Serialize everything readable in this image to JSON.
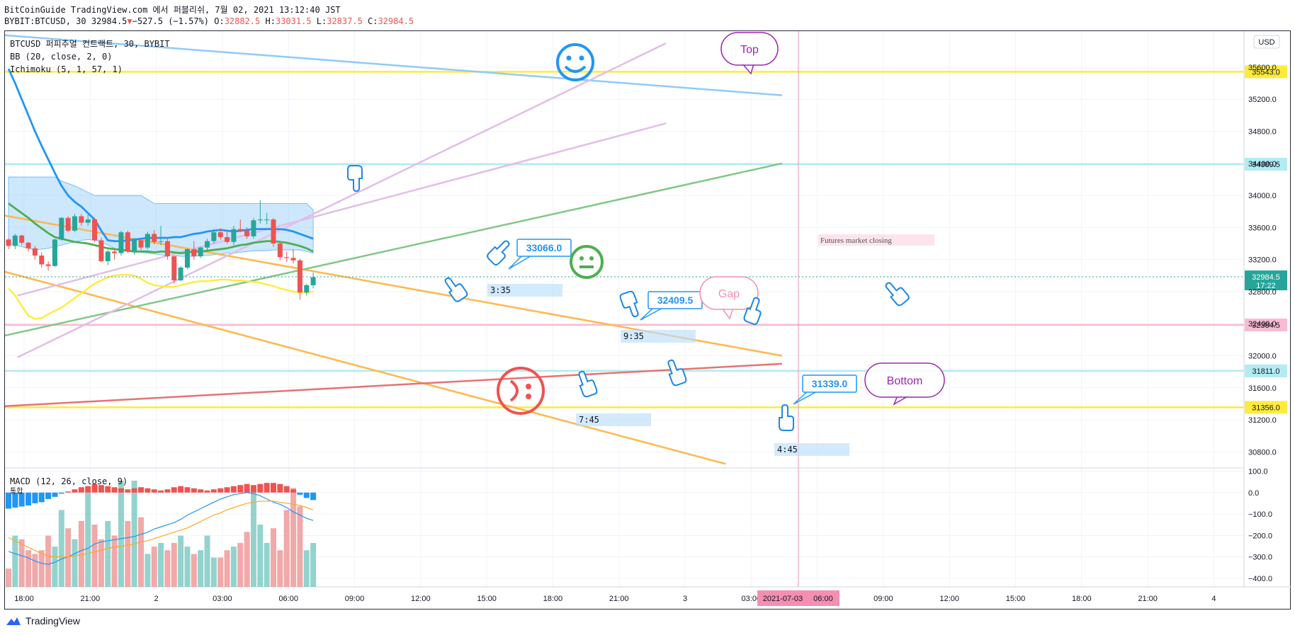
{
  "header": {
    "line1": "BitCoinGuide TradingView.com 에서 퍼블리쉬, 7월 02, 2021 13:12:40 JST",
    "symbol": "BYBIT:BTCUSD, 30 32984.5",
    "change": "−527.5 (−1.57%)",
    "o": "32882.5",
    "h": "33031.5",
    "l": "32837.5",
    "c": "32984.5"
  },
  "legend": {
    "title": "BTCUSD 퍼피추얼 컨트랙트, 30, BYBIT",
    "bb": "BB (20, close, 2, 0)",
    "ichimoku": "Ichimoku (5, 1, 57, 1)",
    "macd": "MACD (12, 26, close, 9)",
    "macd_sub": "통합"
  },
  "currency": "USD",
  "footer": {
    "brand": "TradingView"
  },
  "colors": {
    "up": "#26a69a",
    "down": "#ef5350",
    "blue": "#2196f3",
    "green": "#4caf50",
    "orange": "#ffa726",
    "yellow": "#ffeb3b",
    "purple": "#ce93d8",
    "red": "#ef5350"
  },
  "chart_data": {
    "type": "candlestick",
    "price_axis": {
      "range": [
        30600,
        36050
      ],
      "ticks": [
        "30800.0",
        "31200.0",
        "31600.0",
        "32000.0",
        "32400.0",
        "32800.0",
        "33200.0",
        "33600.0",
        "34000.0",
        "34400.0",
        "34800.0",
        "35200.0",
        "35600.0"
      ]
    },
    "macd_axis": {
      "range": [
        -440,
        115
      ],
      "ticks": [
        "100.0",
        "0.0",
        "−100.0",
        "−200.0",
        "−300.0",
        "−400.0"
      ]
    },
    "time_ticks": [
      "18:00",
      "21:00",
      "2",
      "03:00",
      "06:00",
      "09:00",
      "12:00",
      "15:00",
      "18:00",
      "21:00",
      "3",
      "03:00",
      "06:00",
      "09:00",
      "12:00",
      "15:00",
      "18:00",
      "21:00",
      "4"
    ],
    "time_highlight": "2021-07-03",
    "price_badges": [
      {
        "label": "35543.0",
        "value": 35543,
        "color": "#ffeb3b"
      },
      {
        "label": "34389.5",
        "value": 34389.5,
        "color": "#b2ebf2"
      },
      {
        "label": "32984.5",
        "value": 32984.5,
        "color": "#26a69a",
        "sub": "17:22"
      },
      {
        "label": "32384.5",
        "value": 32384.5,
        "color": "#f8bbd0"
      },
      {
        "label": "31811.0",
        "value": 31811,
        "color": "#b2ebf2"
      },
      {
        "label": "31356.0",
        "value": 31356,
        "color": "#ffeb3b"
      }
    ],
    "horizontal_lines": [
      {
        "value": 35543,
        "color": "#ffeb3b"
      },
      {
        "value": 34389.5,
        "color": "#b2ebf2"
      },
      {
        "value": 32384.5,
        "color": "#f8bbd0"
      },
      {
        "value": 31811,
        "color": "#b2ebf2"
      },
      {
        "value": 31356,
        "color": "#ffeb3b"
      }
    ],
    "trend_lines": [
      {
        "color": "#90caf9",
        "p1": [
          0,
          36000
        ],
        "p2": [
          112.5,
          35250
        ]
      },
      {
        "color": "#ffb74d",
        "p1": [
          0,
          33750
        ],
        "p2": [
          112.5,
          32000
        ]
      },
      {
        "color": "#ffb74d",
        "p1": [
          0,
          33050
        ],
        "p2": [
          104,
          30650
        ]
      },
      {
        "color": "#81c784",
        "p1": [
          0,
          32250
        ],
        "p2": [
          112.5,
          34400
        ]
      },
      {
        "color": "#e57373",
        "p1": [
          0,
          31370
        ],
        "p2": [
          112.5,
          31900
        ]
      },
      {
        "color": "#e1bee7",
        "p1": [
          2,
          31980
        ],
        "p2": [
          95,
          35900
        ]
      },
      {
        "color": "#e1bee7",
        "p1": [
          2,
          32750
        ],
        "p2": [
          95,
          34900
        ]
      }
    ],
    "candles": [
      [
        33450,
        33470,
        33330,
        33370
      ],
      [
        33370,
        33520,
        33330,
        33500
      ],
      [
        33500,
        33510,
        33380,
        33410
      ],
      [
        33410,
        33420,
        33300,
        33340
      ],
      [
        33340,
        33370,
        33200,
        33250
      ],
      [
        33250,
        33290,
        33100,
        33140
      ],
      [
        33140,
        33180,
        33060,
        33120
      ],
      [
        33120,
        33460,
        33110,
        33450
      ],
      [
        33450,
        33730,
        33440,
        33720
      ],
      [
        33720,
        33740,
        33540,
        33560
      ],
      [
        33560,
        33770,
        33540,
        33740
      ],
      [
        33740,
        33770,
        33620,
        33660
      ],
      [
        33660,
        33780,
        33620,
        33700
      ],
      [
        33700,
        33720,
        33420,
        33440
      ],
      [
        33440,
        33470,
        33160,
        33180
      ],
      [
        33180,
        33320,
        33130,
        33300
      ],
      [
        33300,
        33330,
        33200,
        33280
      ],
      [
        33280,
        33560,
        33250,
        33540
      ],
      [
        33540,
        33560,
        33280,
        33300
      ],
      [
        33300,
        33470,
        33260,
        33440
      ],
      [
        33440,
        33460,
        33320,
        33350
      ],
      [
        33350,
        33550,
        33330,
        33520
      ],
      [
        33520,
        33570,
        33390,
        33420
      ],
      [
        33420,
        33620,
        33380,
        33430
      ],
      [
        33430,
        33470,
        33200,
        33240
      ],
      [
        33240,
        33250,
        32900,
        32940
      ],
      [
        32940,
        33120,
        32930,
        33100
      ],
      [
        33100,
        33340,
        33080,
        33330
      ],
      [
        33330,
        33430,
        33200,
        33240
      ],
      [
        33240,
        33360,
        33220,
        33350
      ],
      [
        33350,
        33460,
        33310,
        33430
      ],
      [
        33430,
        33580,
        33400,
        33540
      ],
      [
        33540,
        33590,
        33450,
        33480
      ],
      [
        33480,
        33560,
        33400,
        33420
      ],
      [
        33420,
        33620,
        33380,
        33580
      ],
      [
        33580,
        33700,
        33540,
        33560
      ],
      [
        33560,
        33600,
        33460,
        33490
      ],
      [
        33490,
        33720,
        33460,
        33690
      ],
      [
        33690,
        33940,
        33650,
        33700
      ],
      [
        33700,
        33780,
        33640,
        33700
      ],
      [
        33700,
        33720,
        33360,
        33400
      ],
      [
        33400,
        33420,
        33190,
        33230
      ],
      [
        33230,
        33300,
        33170,
        33220
      ],
      [
        33220,
        33330,
        33150,
        33190
      ],
      [
        33190,
        33210,
        32700,
        32790
      ],
      [
        32790,
        32900,
        32750,
        32880
      ],
      [
        32880,
        33040,
        32840,
        32980
      ]
    ],
    "bb_basis": [
      33900,
      33840,
      33780,
      33720,
      33650,
      33590,
      33530,
      33480,
      33460,
      33440,
      33420,
      33410,
      33400,
      33380,
      33360,
      33340,
      33330,
      33320,
      33310,
      33300,
      33300,
      33300,
      33290,
      33300,
      33300,
      33290,
      33280,
      33290,
      33300,
      33300,
      33310,
      33320,
      33330,
      33340,
      33360,
      33380,
      33390,
      33410,
      33420,
      33430,
      33430,
      33420,
      33410,
      33390,
      33370,
      33340,
      33300
    ],
    "bb_upper": [
      35580,
      35400,
      35200,
      35000,
      34800,
      34620,
      34450,
      34280,
      34120,
      34000,
      33920,
      33860,
      33780,
      33700,
      33560,
      33440,
      33430,
      33430,
      33440,
      33450,
      33460,
      33470,
      33470,
      33470,
      33470,
      33480,
      33480,
      33500,
      33520,
      33530,
      33550,
      33560,
      33570,
      33560,
      33550,
      33560,
      33570,
      33580,
      33580,
      33580,
      33580,
      33580,
      33570,
      33550,
      33520,
      33490,
      33460
    ],
    "bb_lower": [
      32840,
      32750,
      32620,
      32500,
      32460,
      32470,
      32520,
      32560,
      32600,
      32660,
      32720,
      32780,
      32840,
      32900,
      32940,
      32980,
      33000,
      33010,
      33010,
      33000,
      32960,
      32910,
      32880,
      32870,
      32860,
      32860,
      32880,
      32900,
      32920,
      32930,
      32930,
      32940,
      32950,
      32950,
      32940,
      32940,
      32930,
      32920,
      32910,
      32890,
      32870,
      32840,
      32820,
      32800,
      32790,
      32790,
      32800
    ],
    "cloud_top": [
      34230,
      34230,
      34230,
      34230,
      34230,
      34230,
      34230,
      34230,
      34180,
      34150,
      34120,
      34080,
      34040,
      34000,
      34000,
      34000,
      34000,
      34000,
      34000,
      34000,
      34000,
      33950,
      33900,
      33900,
      33900,
      33900,
      33900,
      33900,
      33900,
      33900,
      33900,
      33900,
      33900,
      33900,
      33900,
      33900,
      33900,
      33900,
      33900,
      33900,
      33900,
      33900,
      33900,
      33900,
      33900,
      33900,
      33820
    ],
    "cloud_bottom": [
      33400,
      33380,
      33360,
      33340,
      33320,
      33330,
      33340,
      33360,
      33380,
      33400,
      33420,
      33440,
      33450,
      33440,
      33420,
      33380,
      33340,
      33320,
      33310,
      33300,
      33290,
      33280,
      33270,
      33260,
      33250,
      33250,
      33240,
      33240,
      33240,
      33250,
      33250,
      33260,
      33270,
      33280,
      33280,
      33290,
      33300,
      33310,
      33310,
      33310,
      33320,
      33320,
      33320,
      33320,
      33320,
      33300,
      33280
    ],
    "macd_hist": [
      -75,
      -70,
      -65,
      -60,
      -50,
      -45,
      -30,
      -20,
      -5,
      5,
      15,
      25,
      30,
      40,
      35,
      30,
      25,
      20,
      15,
      20,
      25,
      20,
      15,
      10,
      15,
      25,
      30,
      25,
      20,
      15,
      10,
      15,
      20,
      25,
      30,
      35,
      40,
      35,
      40,
      45,
      45,
      40,
      30,
      15,
      -10,
      -25,
      -35
    ],
    "macd_line": [
      -275,
      -285,
      -295,
      -305,
      -320,
      -330,
      -335,
      -325,
      -310,
      -300,
      -285,
      -270,
      -260,
      -240,
      -230,
      -225,
      -220,
      -215,
      -210,
      -205,
      -195,
      -185,
      -170,
      -160,
      -150,
      -140,
      -125,
      -105,
      -90,
      -75,
      -60,
      -45,
      -30,
      -20,
      -10,
      -5,
      0,
      -5,
      -15,
      -30,
      -45,
      -55,
      -70,
      -90,
      -105,
      -120,
      -130
    ],
    "macd_signal": [
      -210,
      -225,
      -240,
      -255,
      -270,
      -285,
      -295,
      -300,
      -300,
      -300,
      -295,
      -290,
      -285,
      -275,
      -270,
      -260,
      -255,
      -250,
      -245,
      -240,
      -230,
      -225,
      -215,
      -205,
      -195,
      -185,
      -175,
      -165,
      -150,
      -135,
      -120,
      -105,
      -95,
      -80,
      -70,
      -60,
      -50,
      -45,
      -40,
      -40,
      -40,
      -45,
      -50,
      -55,
      -60,
      -70,
      -80
    ],
    "volume": [
      5,
      14,
      13,
      10,
      9,
      10,
      14,
      11,
      21,
      16,
      13,
      18,
      26,
      17,
      13,
      18,
      14,
      29,
      18,
      29,
      19,
      9,
      11,
      12,
      10,
      12,
      14,
      11,
      9,
      10,
      14,
      8,
      8,
      10,
      11,
      12,
      15,
      26,
      17,
      12,
      16,
      10,
      21,
      27,
      22,
      10,
      12
    ],
    "annotations": [
      {
        "kind": "price_label",
        "text": "33066.0"
      },
      {
        "kind": "price_label",
        "text": "32409.5"
      },
      {
        "kind": "price_label",
        "text": "31339.0"
      },
      {
        "kind": "time_label",
        "text": "3:35"
      },
      {
        "kind": "time_label",
        "text": "9:35"
      },
      {
        "kind": "time_label",
        "text": "7:45"
      },
      {
        "kind": "time_label",
        "text": "4:45"
      },
      {
        "kind": "note",
        "text": "Futures market closing"
      },
      {
        "kind": "callout",
        "text": "Top"
      },
      {
        "kind": "callout",
        "text": "Gap"
      },
      {
        "kind": "callout",
        "text": "Bottom"
      }
    ]
  }
}
